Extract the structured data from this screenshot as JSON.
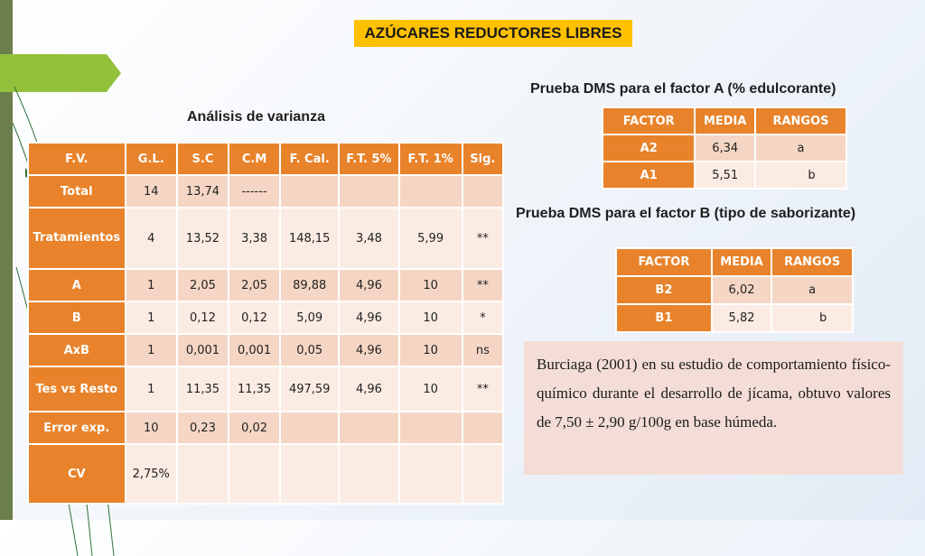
{
  "title": "AZÚCARES REDUCTORES LIBRES",
  "anova": {
    "heading": "Análisis de varianza",
    "headers": [
      "F.V.",
      "G.L.",
      "S.C",
      "C.M",
      "F. Cal.",
      "F.T. 5%",
      "F.T. 1%",
      "Sig."
    ],
    "rows": [
      [
        "Total",
        "14",
        "13,74",
        "------",
        "",
        "",
        "",
        ""
      ],
      [
        "Tratamientos",
        "4",
        "13,52",
        "3,38",
        "148,15",
        "3,48",
        "5,99",
        "**"
      ],
      [
        "A",
        "1",
        "2,05",
        "2,05",
        "89,88",
        "4,96",
        "10",
        "**"
      ],
      [
        "B",
        "1",
        "0,12",
        "0,12",
        "5,09",
        "4,96",
        "10",
        "*"
      ],
      [
        "AxB",
        "1",
        "0,001",
        "0,001",
        "0,05",
        "4,96",
        "10",
        "ns"
      ],
      [
        "Tes vs Resto",
        "1",
        "11,35",
        "11,35",
        "497,59",
        "4,96",
        "10",
        "**"
      ],
      [
        "Error exp.",
        "10",
        "0,23",
        "0,02",
        "",
        "",
        "",
        ""
      ],
      [
        "CV",
        "2,75%",
        "",
        "",
        "",
        "",
        "",
        ""
      ]
    ]
  },
  "dms_a": {
    "heading": "Prueba DMS para el factor A (% edulcorante)",
    "headers": [
      "FACTOR",
      "MEDIA",
      "RANGOS"
    ],
    "rows": [
      [
        "A2",
        "6,34",
        "a"
      ],
      [
        "A1",
        "5,51",
        "b"
      ]
    ]
  },
  "dms_b": {
    "heading": "Prueba DMS para el factor B (tipo de saborizante)",
    "headers": [
      "FACTOR",
      "MEDIA",
      "RANGOS"
    ],
    "rows": [
      [
        "B2",
        "6,02",
        "a"
      ],
      [
        "B1",
        "5,82",
        "b"
      ]
    ]
  },
  "quote": "Burciaga (2001) en su estudio de comportamiento físico-químico durante el desarrollo de jícama, obtuvo valores de 7,50 ± 2,90 g/100g en base húmeda."
}
